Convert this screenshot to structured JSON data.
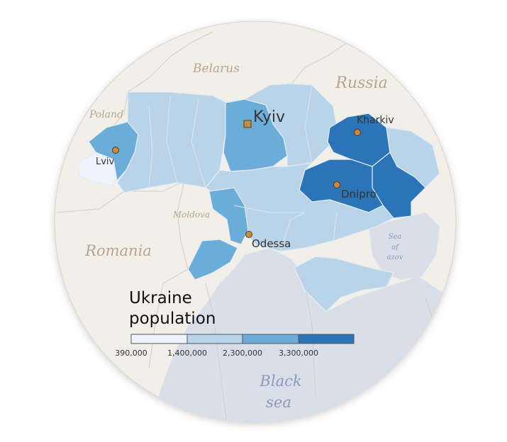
{
  "countries": {
    "belarus": "Belarus",
    "russia": "Russia",
    "poland": "Poland",
    "moldova": "Moldova",
    "romania": "Romania"
  },
  "seas": {
    "azov_line1": "Sea",
    "azov_line2": "of",
    "azov_line3": "azov",
    "black_line1": "Black",
    "black_line2": "sea"
  },
  "cities": {
    "capital": "Kyiv",
    "kharkiv": "Kharkiv",
    "lviv": "Lviv",
    "dnipro": "Dnipro",
    "odessa": "Odessa"
  },
  "legend": {
    "title_line1": "Ukraine",
    "title_line2": "population",
    "thresholds": [
      "390,000",
      "1,400,000",
      "2,300,000",
      "3,300,000"
    ],
    "colors": [
      "#eef3fb",
      "#b9d4e9",
      "#6badd8",
      "#2b74b8"
    ]
  },
  "colors": {
    "land": "#f2efe9",
    "sea": "#d9dfe9",
    "border": "#d2ccc4",
    "city_marker": "#c78a3e"
  }
}
